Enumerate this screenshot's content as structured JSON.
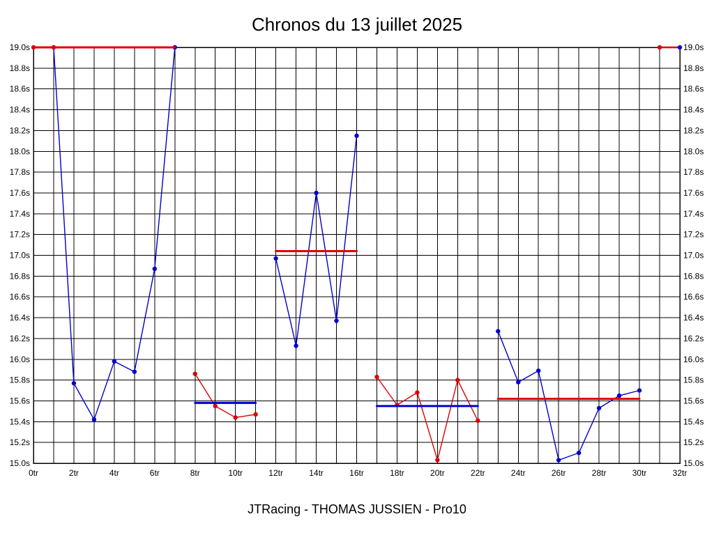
{
  "title": "Chronos du 13 juillet 2025",
  "footer": "JTRacing - THOMAS JUSSIEN - Pro10",
  "chart_data": {
    "type": "line",
    "title": "Chronos du 13 juillet 2025",
    "xlabel": "",
    "ylabel": "",
    "x_unit": "tr",
    "y_unit": "s",
    "xlim": [
      0,
      32
    ],
    "ylim": [
      15.0,
      19.0
    ],
    "grid": true,
    "x_grid_step": 1,
    "y_grid_step": 0.2,
    "legend": "none",
    "colors": {
      "blue": "#0000cc",
      "red": "#dd0000"
    },
    "y_ticks": [
      "19.0s",
      "18.8s",
      "18.6s",
      "18.4s",
      "18.2s",
      "18.0s",
      "17.8s",
      "17.6s",
      "17.4s",
      "17.2s",
      "17.0s",
      "16.8s",
      "16.6s",
      "16.4s",
      "16.2s",
      "16.0s",
      "15.8s",
      "15.6s",
      "15.4s",
      "15.2s",
      "15.0s"
    ],
    "x_ticks": [
      "0tr",
      "2tr",
      "4tr",
      "6tr",
      "8tr",
      "10tr",
      "12tr",
      "14tr",
      "16tr",
      "18tr",
      "20tr",
      "22tr",
      "24tr",
      "26tr",
      "28tr",
      "30tr",
      "32tr"
    ],
    "series": [
      {
        "name": "stint-1-laps",
        "color": "blue",
        "width": 1.4,
        "points": [
          [
            1,
            19.0
          ],
          [
            2,
            15.77
          ],
          [
            3,
            15.42
          ],
          [
            4,
            15.98
          ],
          [
            5,
            15.88
          ],
          [
            6,
            16.87
          ],
          [
            7,
            19.0
          ]
        ]
      },
      {
        "name": "stint-1-average",
        "color": "red",
        "width": 3,
        "points": [
          [
            0,
            19.0
          ],
          [
            7,
            19.0
          ]
        ],
        "markers": [
          [
            0,
            19.0
          ],
          [
            1,
            19.0
          ]
        ]
      },
      {
        "name": "stint-2-laps",
        "color": "red",
        "width": 1.4,
        "points": [
          [
            8,
            15.86
          ],
          [
            9,
            15.55
          ],
          [
            10,
            15.44
          ],
          [
            11,
            15.47
          ]
        ]
      },
      {
        "name": "stint-2-average",
        "color": "blue",
        "width": 3,
        "points": [
          [
            8,
            15.58
          ],
          [
            11,
            15.58
          ]
        ],
        "markers": []
      },
      {
        "name": "stint-3-laps",
        "color": "blue",
        "width": 1.4,
        "points": [
          [
            12,
            16.97
          ],
          [
            13,
            16.13
          ],
          [
            14,
            17.6
          ],
          [
            15,
            16.37
          ],
          [
            16,
            18.15
          ]
        ]
      },
      {
        "name": "stint-3-average",
        "color": "red",
        "width": 3,
        "points": [
          [
            12,
            17.04
          ],
          [
            16,
            17.04
          ]
        ],
        "markers": []
      },
      {
        "name": "stint-4-laps",
        "color": "red",
        "width": 1.4,
        "points": [
          [
            17,
            15.83
          ],
          [
            18,
            15.56
          ],
          [
            19,
            15.68
          ],
          [
            20,
            15.03
          ],
          [
            21,
            15.8
          ],
          [
            22,
            15.41
          ]
        ]
      },
      {
        "name": "stint-4-average",
        "color": "blue",
        "width": 3,
        "points": [
          [
            17,
            15.55
          ],
          [
            22,
            15.55
          ]
        ],
        "markers": []
      },
      {
        "name": "stint-5-laps",
        "color": "blue",
        "width": 1.4,
        "points": [
          [
            23,
            16.27
          ],
          [
            24,
            15.78
          ],
          [
            25,
            15.89
          ],
          [
            26,
            15.03
          ],
          [
            27,
            15.1
          ],
          [
            28,
            15.53
          ],
          [
            29,
            15.65
          ],
          [
            30,
            15.7
          ]
        ]
      },
      {
        "name": "stint-5-average",
        "color": "red",
        "width": 3,
        "points": [
          [
            23,
            15.62
          ],
          [
            30,
            15.62
          ]
        ],
        "markers": []
      },
      {
        "name": "stint-6-line",
        "color": "red",
        "width": 2.5,
        "points": [
          [
            31,
            19.0
          ],
          [
            32,
            19.0
          ]
        ],
        "markers": [
          [
            31,
            19.0
          ]
        ]
      },
      {
        "name": "stint-6-end-point",
        "color": "blue",
        "width": 0,
        "points": [],
        "markers": [
          [
            32,
            19.0
          ]
        ]
      }
    ]
  }
}
